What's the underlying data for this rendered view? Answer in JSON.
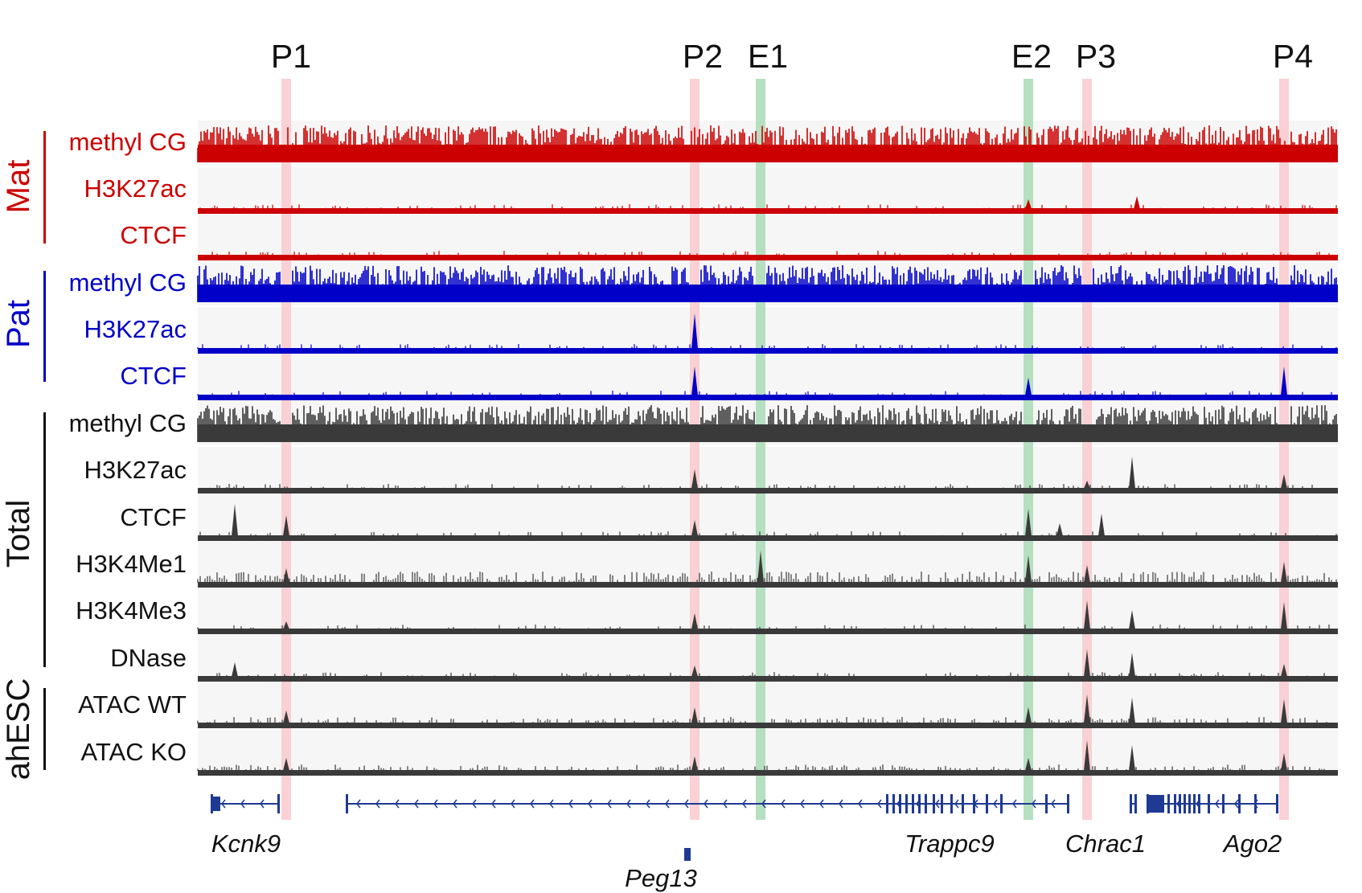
{
  "colors": {
    "mat": "#cc0000",
    "pat": "#0000c8",
    "total": "#3a3a3a",
    "gene": "#1f3a93",
    "promoter_band": "#f9c9cc",
    "enhancer_band": "#a9dbb5",
    "track_bg": "#f6f6f6"
  },
  "headers": [
    {
      "id": "P1",
      "label": "P1",
      "kind": "promoter"
    },
    {
      "id": "P2",
      "label": "P2",
      "kind": "promoter"
    },
    {
      "id": "E1",
      "label": "E1",
      "kind": "enhancer"
    },
    {
      "id": "E2",
      "label": "E2",
      "kind": "enhancer"
    },
    {
      "id": "P3",
      "label": "P3",
      "kind": "promoter"
    },
    {
      "id": "P4",
      "label": "P4",
      "kind": "promoter"
    }
  ],
  "groups": [
    {
      "id": "mat",
      "label": "Mat"
    },
    {
      "id": "pat",
      "label": "Pat"
    },
    {
      "id": "total",
      "label": "Total"
    },
    {
      "id": "ahesc",
      "label": "ahESC"
    }
  ],
  "tracks": [
    {
      "label": "methyl CG",
      "group": "mat",
      "kind": "methyl"
    },
    {
      "label": "H3K27ac",
      "group": "mat",
      "kind": "signal"
    },
    {
      "label": "CTCF",
      "group": "mat",
      "kind": "signal"
    },
    {
      "label": "methyl CG",
      "group": "pat",
      "kind": "methyl"
    },
    {
      "label": "H3K27ac",
      "group": "pat",
      "kind": "signal"
    },
    {
      "label": "CTCF",
      "group": "pat",
      "kind": "signal"
    },
    {
      "label": "methyl CG",
      "group": "total",
      "kind": "methyl"
    },
    {
      "label": "H3K27ac",
      "group": "total",
      "kind": "signal"
    },
    {
      "label": "CTCF",
      "group": "total",
      "kind": "signal"
    },
    {
      "label": "H3K4Me1",
      "group": "total",
      "kind": "signal"
    },
    {
      "label": "H3K4Me3",
      "group": "total",
      "kind": "signal"
    },
    {
      "label": "DNase",
      "group": "total",
      "kind": "signal"
    },
    {
      "label": "ATAC WT",
      "group": "ahesc",
      "kind": "signal"
    },
    {
      "label": "ATAC KO",
      "group": "ahesc",
      "kind": "signal"
    }
  ],
  "genes": [
    {
      "id": "kcnk9",
      "label": "Kcnk9"
    },
    {
      "id": "trappc9",
      "label": "Trappc9"
    },
    {
      "id": "chrac1",
      "label": "Chrac1"
    },
    {
      "id": "ago2",
      "label": "Ago2"
    },
    {
      "id": "peg13",
      "label": "Peg13"
    }
  ]
}
